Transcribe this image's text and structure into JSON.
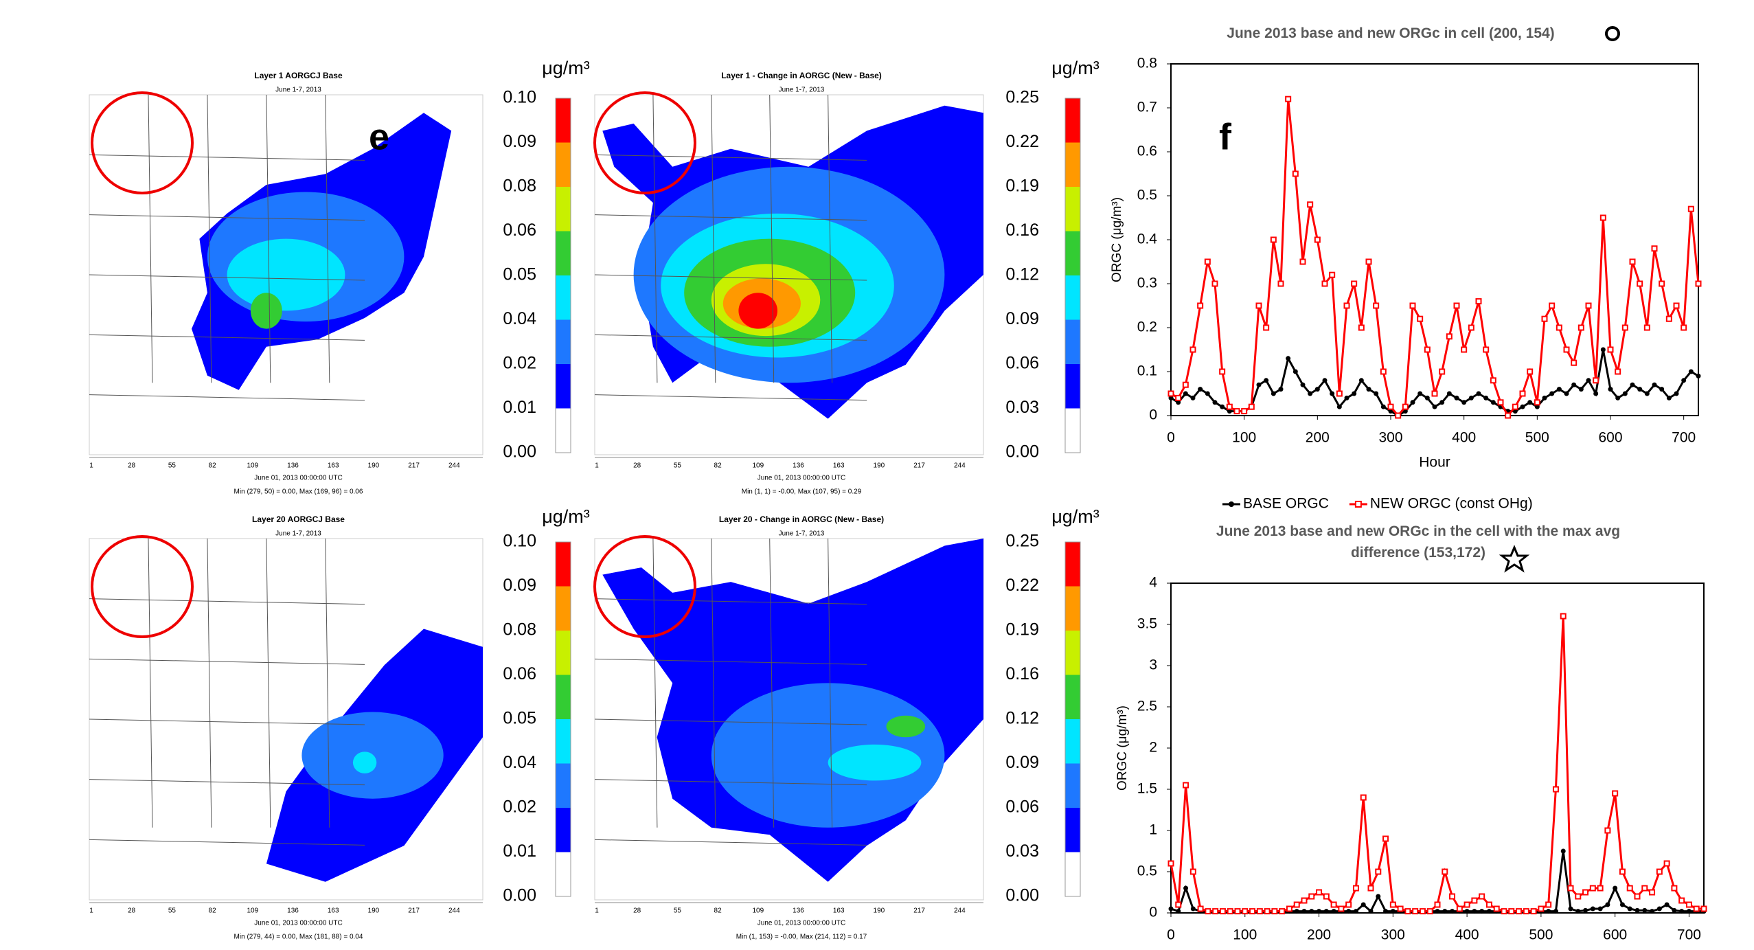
{
  "maps": [
    {
      "title": "Layer 1 AORGCJ Base",
      "subtitle": "June 1-7, 2013",
      "panel_label": "e",
      "x_axis_labels": [
        1,
        28,
        55,
        82,
        109,
        136,
        163,
        190,
        217,
        244
      ],
      "time": "June 01, 2013 00:00:00 UTC",
      "minmax": "Min (279, 50) = 0.00, Max (169, 96) = 0.06",
      "unit": "μg/m³",
      "colorbar_labels": [
        "0.10",
        "0.09",
        "0.08",
        "0.06",
        "0.05",
        "0.04",
        "0.02",
        "0.01",
        "0.00"
      ]
    },
    {
      "title": "Layer 1 - Change in AORGC (New - Base)",
      "subtitle": "June 1-7, 2013",
      "x_axis_labels": [
        1,
        28,
        55,
        82,
        109,
        136,
        163,
        190,
        217,
        244
      ],
      "time": "June 01, 2013 00:00:00 UTC",
      "minmax": "Min (1, 1) = -0.00, Max (107, 95) = 0.29",
      "unit": "μg/m³",
      "colorbar_labels": [
        "0.25",
        "0.22",
        "0.19",
        "0.16",
        "0.12",
        "0.09",
        "0.06",
        "0.03",
        "0.00"
      ]
    },
    {
      "title": "Layer 20 AORGCJ Base",
      "subtitle": "June 1-7, 2013",
      "x_axis_labels": [
        1,
        28,
        55,
        82,
        109,
        136,
        163,
        190,
        217,
        244
      ],
      "time": "June 01, 2013 00:00:00 UTC",
      "minmax": "Min (279, 44) = 0.00, Max (181, 88) = 0.04",
      "unit": "μg/m³",
      "colorbar_labels": [
        "0.10",
        "0.09",
        "0.08",
        "0.06",
        "0.05",
        "0.04",
        "0.02",
        "0.01",
        "0.00"
      ]
    },
    {
      "title": "Layer 20 - Change in AORGC (New - Base)",
      "subtitle": "June 1-7, 2013",
      "x_axis_labels": [
        1,
        28,
        55,
        82,
        109,
        136,
        163,
        190,
        217,
        244
      ],
      "time": "June 01, 2013 00:00:00 UTC",
      "minmax": "Min (1, 153) = -0.00, Max (214, 112) = 0.17",
      "unit": "μg/m³",
      "colorbar_labels": [
        "0.25",
        "0.22",
        "0.19",
        "0.16",
        "0.12",
        "0.09",
        "0.06",
        "0.03",
        "0.00"
      ]
    }
  ],
  "chart_data": [
    {
      "type": "line",
      "title": "June 2013 base and new ORGc in cell (200, 154)",
      "panel_label": "f",
      "x_label": "Hour",
      "y_label": "ORGC (μg/m³)",
      "legend": "bottom",
      "x": [
        0,
        10,
        20,
        30,
        40,
        50,
        60,
        70,
        80,
        90,
        100,
        110,
        120,
        130,
        140,
        150,
        160,
        170,
        180,
        190,
        200,
        210,
        220,
        230,
        240,
        250,
        260,
        270,
        280,
        290,
        300,
        310,
        320,
        330,
        340,
        350,
        360,
        370,
        380,
        390,
        400,
        410,
        420,
        430,
        440,
        450,
        460,
        470,
        480,
        490,
        500,
        510,
        520,
        530,
        540,
        550,
        560,
        570,
        580,
        590,
        600,
        610,
        620,
        630,
        640,
        650,
        660,
        670,
        680,
        690,
        700,
        710,
        720
      ],
      "xlim": [
        0,
        720
      ],
      "xticks": [
        0,
        100,
        200,
        300,
        400,
        500,
        600,
        700
      ],
      "ylim": [
        0,
        0.8
      ],
      "yticks": [
        0,
        0.1,
        0.2,
        0.3,
        0.4,
        0.5,
        0.6,
        0.7,
        0.8
      ],
      "series": [
        {
          "name": "BASE ORGC",
          "color": "#000000",
          "values": [
            0.04,
            0.03,
            0.05,
            0.04,
            0.06,
            0.05,
            0.03,
            0.02,
            0.01,
            0.01,
            0.01,
            0.02,
            0.07,
            0.08,
            0.05,
            0.06,
            0.13,
            0.1,
            0.07,
            0.05,
            0.06,
            0.08,
            0.05,
            0.02,
            0.04,
            0.05,
            0.08,
            0.06,
            0.05,
            0.02,
            0.01,
            0,
            0.01,
            0.03,
            0.05,
            0.04,
            0.02,
            0.03,
            0.05,
            0.04,
            0.03,
            0.04,
            0.05,
            0.04,
            0.03,
            0.02,
            0.01,
            0.01,
            0.02,
            0.03,
            0.02,
            0.04,
            0.05,
            0.06,
            0.05,
            0.07,
            0.06,
            0.08,
            0.05,
            0.15,
            0.06,
            0.04,
            0.05,
            0.07,
            0.06,
            0.05,
            0.07,
            0.06,
            0.04,
            0.05,
            0.08,
            0.1,
            0.09
          ]
        },
        {
          "name": "NEW ORGC (const OHg)",
          "color": "#ff0000",
          "values": [
            0.05,
            0.04,
            0.07,
            0.15,
            0.25,
            0.35,
            0.3,
            0.1,
            0.02,
            0.01,
            0.01,
            0.02,
            0.25,
            0.2,
            0.4,
            0.3,
            0.72,
            0.55,
            0.35,
            0.48,
            0.4,
            0.3,
            0.32,
            0.05,
            0.25,
            0.3,
            0.2,
            0.35,
            0.25,
            0.1,
            0.02,
            0,
            0.02,
            0.25,
            0.22,
            0.15,
            0.05,
            0.1,
            0.18,
            0.25,
            0.15,
            0.2,
            0.26,
            0.15,
            0.08,
            0.03,
            0,
            0.02,
            0.05,
            0.1,
            0.03,
            0.22,
            0.25,
            0.2,
            0.15,
            0.12,
            0.2,
            0.25,
            0.08,
            0.45,
            0.15,
            0.1,
            0.2,
            0.35,
            0.3,
            0.2,
            0.38,
            0.3,
            0.22,
            0.25,
            0.2,
            0.47,
            0.3
          ]
        }
      ]
    },
    {
      "type": "line",
      "title": "June 2013 base and new ORGc in the cell with the max avg difference (153,172)",
      "y_label": "ORGC (μg/m³)",
      "x": [
        0,
        10,
        20,
        30,
        40,
        50,
        60,
        70,
        80,
        90,
        100,
        110,
        120,
        130,
        140,
        150,
        160,
        170,
        180,
        190,
        200,
        210,
        220,
        230,
        240,
        250,
        260,
        270,
        280,
        290,
        300,
        310,
        320,
        330,
        340,
        350,
        360,
        370,
        380,
        390,
        400,
        410,
        420,
        430,
        440,
        450,
        460,
        470,
        480,
        490,
        500,
        510,
        520,
        530,
        540,
        550,
        560,
        570,
        580,
        590,
        600,
        610,
        620,
        630,
        640,
        650,
        660,
        670,
        680,
        690,
        700,
        710,
        720
      ],
      "xlim": [
        0,
        720
      ],
      "xticks": [
        0,
        100,
        200,
        300,
        400,
        500,
        600,
        700
      ],
      "ylim": [
        0,
        4
      ],
      "yticks": [
        0,
        0.5,
        1,
        1.5,
        2,
        2.5,
        3,
        3.5,
        4
      ],
      "series": [
        {
          "color": "#000000",
          "values": [
            0.05,
            0.02,
            0.3,
            0.05,
            0.02,
            0.02,
            0.02,
            0.02,
            0.02,
            0.02,
            0.02,
            0.02,
            0.02,
            0.02,
            0.02,
            0.02,
            0.02,
            0.02,
            0.02,
            0.02,
            0.02,
            0.02,
            0.02,
            0.02,
            0.02,
            0.02,
            0.1,
            0.02,
            0.2,
            0.02,
            0.02,
            0.02,
            0.02,
            0.02,
            0.02,
            0.02,
            0.02,
            0.02,
            0.02,
            0.02,
            0.02,
            0.02,
            0.02,
            0.02,
            0.02,
            0.02,
            0.02,
            0.02,
            0.02,
            0.02,
            0.02,
            0.02,
            0.02,
            0.75,
            0.05,
            0.02,
            0.03,
            0.05,
            0.05,
            0.1,
            0.3,
            0.1,
            0.05,
            0.03,
            0.03,
            0.02,
            0.05,
            0.1,
            0.03,
            0.02,
            0.02,
            0.02,
            0.02
          ]
        },
        {
          "color": "#ff0000",
          "values": [
            0.6,
            0.1,
            1.55,
            0.5,
            0.05,
            0.02,
            0.02,
            0.02,
            0.02,
            0.02,
            0.02,
            0.02,
            0.02,
            0.02,
            0.02,
            0.02,
            0.05,
            0.1,
            0.15,
            0.2,
            0.25,
            0.2,
            0.1,
            0.05,
            0.1,
            0.3,
            1.4,
            0.3,
            0.5,
            0.9,
            0.1,
            0.05,
            0.02,
            0.02,
            0.02,
            0.02,
            0.1,
            0.5,
            0.2,
            0.05,
            0.1,
            0.15,
            0.2,
            0.1,
            0.05,
            0.02,
            0.02,
            0.02,
            0.02,
            0.02,
            0.05,
            0.1,
            1.5,
            3.6,
            0.3,
            0.2,
            0.25,
            0.3,
            0.3,
            1,
            1.45,
            0.5,
            0.3,
            0.2,
            0.3,
            0.25,
            0.5,
            0.6,
            0.3,
            0.15,
            0.1,
            0.05,
            0.05
          ]
        }
      ]
    }
  ]
}
